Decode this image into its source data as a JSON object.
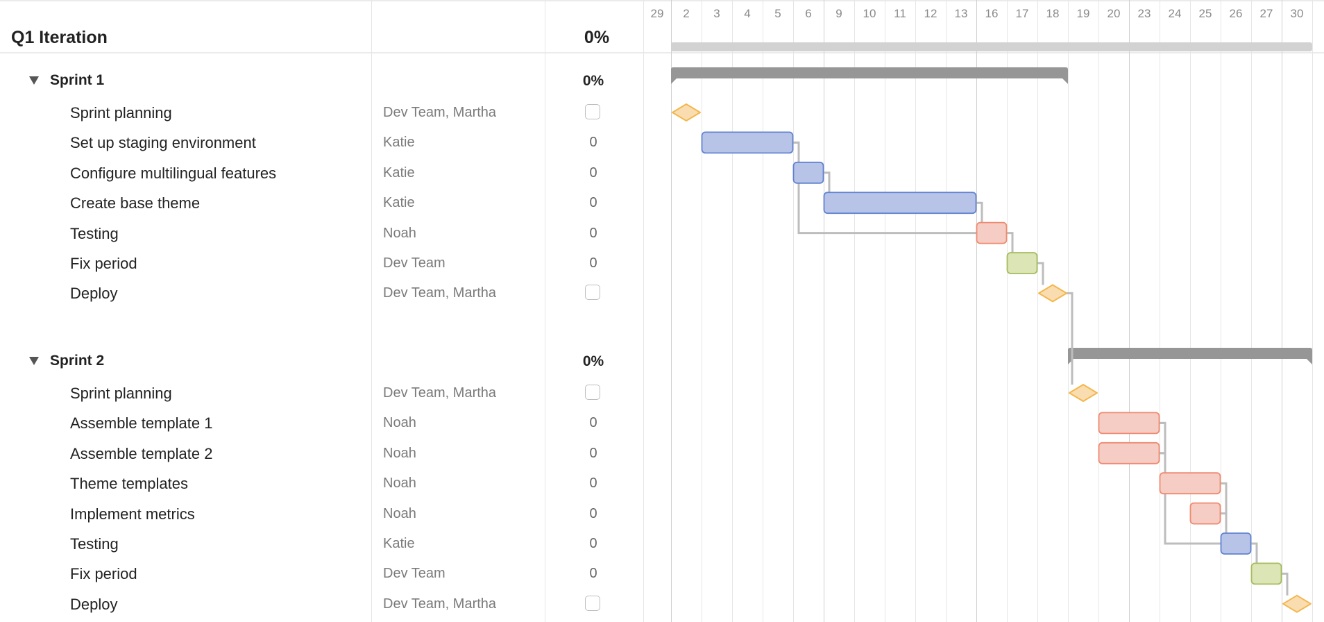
{
  "project": {
    "title": "Q1 Iteration",
    "progress": "0%"
  },
  "timeline": {
    "days": [
      "29",
      "2",
      "3",
      "4",
      "5",
      "6",
      "9",
      "10",
      "11",
      "12",
      "13",
      "16",
      "17",
      "18",
      "19",
      "20",
      "23",
      "24",
      "25",
      "26",
      "27",
      "30",
      "3"
    ],
    "week_starts": [
      "2",
      "9",
      "16",
      "23",
      "30"
    ]
  },
  "colors": {
    "blue_fill": "#b7c4e8",
    "blue_stroke": "#6282d1",
    "red_fill": "#f5cdc4",
    "red_stroke": "#ef8a70",
    "green_fill": "#dbe5b5",
    "green_stroke": "#a5bc5f",
    "milestone_fill": "#f9ddb0",
    "milestone_stroke": "#f4b64c",
    "group_bar": "#969696",
    "project_bar": "#d2d2d2",
    "connector": "#bdbdbd"
  },
  "groups": [
    {
      "name": "Sprint 1",
      "progress": "0%",
      "start": "2",
      "end": "18",
      "tasks": [
        {
          "id": "s1-plan",
          "name": "Sprint planning",
          "assignee": "Dev Team, Martha",
          "type": "milestone",
          "value": "",
          "start": "2",
          "end": "2"
        },
        {
          "id": "s1-stage",
          "name": "Set up staging environment",
          "assignee": "Katie",
          "type": "task",
          "value": "0",
          "color": "blue",
          "start": "3",
          "end": "5"
        },
        {
          "id": "s1-multi",
          "name": "Configure multilingual features",
          "assignee": "Katie",
          "type": "task",
          "value": "0",
          "color": "blue",
          "start": "6",
          "end": "6"
        },
        {
          "id": "s1-theme",
          "name": "Create base theme",
          "assignee": "Katie",
          "type": "task",
          "value": "0",
          "color": "blue",
          "start": "9",
          "end": "13"
        },
        {
          "id": "s1-test",
          "name": "Testing",
          "assignee": "Noah",
          "type": "task",
          "value": "0",
          "color": "red",
          "start": "16",
          "end": "16"
        },
        {
          "id": "s1-fix",
          "name": "Fix period",
          "assignee": "Dev Team",
          "type": "task",
          "value": "0",
          "color": "green",
          "start": "17",
          "end": "17"
        },
        {
          "id": "s1-deploy",
          "name": "Deploy",
          "assignee": "Dev Team, Martha",
          "type": "milestone",
          "value": "",
          "start": "18",
          "end": "18"
        }
      ]
    },
    {
      "name": "Sprint 2",
      "progress": "0%",
      "start": "19",
      "end": "30",
      "tasks": [
        {
          "id": "s2-plan",
          "name": "Sprint planning",
          "assignee": "Dev Team, Martha",
          "type": "milestone",
          "value": "",
          "start": "19",
          "end": "19"
        },
        {
          "id": "s2-t1",
          "name": "Assemble template 1",
          "assignee": "Noah",
          "type": "task",
          "value": "0",
          "color": "red",
          "start": "20",
          "end": "23"
        },
        {
          "id": "s2-t2",
          "name": "Assemble template 2",
          "assignee": "Noah",
          "type": "task",
          "value": "0",
          "color": "red",
          "start": "20",
          "end": "23"
        },
        {
          "id": "s2-theme",
          "name": "Theme templates",
          "assignee": "Noah",
          "type": "task",
          "value": "0",
          "color": "red",
          "start": "24",
          "end": "25"
        },
        {
          "id": "s2-metrics",
          "name": "Implement metrics",
          "assignee": "Noah",
          "type": "task",
          "value": "0",
          "color": "red",
          "start": "25",
          "end": "25"
        },
        {
          "id": "s2-test",
          "name": "Testing",
          "assignee": "Katie",
          "type": "task",
          "value": "0",
          "color": "blue",
          "start": "26",
          "end": "26"
        },
        {
          "id": "s2-fix",
          "name": "Fix period",
          "assignee": "Dev Team",
          "type": "task",
          "value": "0",
          "color": "green",
          "start": "27",
          "end": "27"
        },
        {
          "id": "s2-deploy",
          "name": "Deploy",
          "assignee": "Dev Team, Martha",
          "type": "milestone",
          "value": "",
          "start": "30",
          "end": "30"
        }
      ]
    }
  ],
  "dependencies": [
    [
      "s1-stage",
      "s1-multi"
    ],
    [
      "s1-multi",
      "s1-theme"
    ],
    [
      "s1-stage",
      "s1-test"
    ],
    [
      "s1-theme",
      "s1-test"
    ],
    [
      "s1-test",
      "s1-fix"
    ],
    [
      "s1-fix",
      "s1-deploy"
    ],
    [
      "s1-deploy",
      "s2-plan"
    ],
    [
      "s2-t1",
      "s2-theme"
    ],
    [
      "s2-t2",
      "s2-theme"
    ],
    [
      "s2-t1",
      "s2-test"
    ],
    [
      "s2-t2",
      "s2-test"
    ],
    [
      "s2-theme",
      "s2-test"
    ],
    [
      "s2-metrics",
      "s2-test"
    ],
    [
      "s2-test",
      "s2-fix"
    ],
    [
      "s2-fix",
      "s2-deploy"
    ]
  ]
}
